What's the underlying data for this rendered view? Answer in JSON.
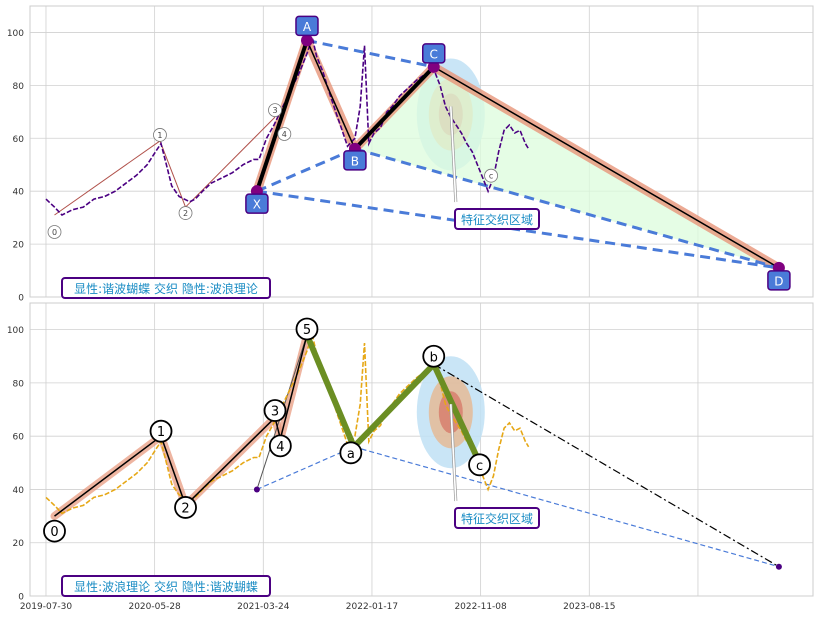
{
  "chart_data": [
    {
      "type": "line",
      "panel": "top",
      "ylim": [
        0,
        110
      ],
      "yticks": [
        0,
        20,
        40,
        60,
        80,
        100
      ],
      "grid": true,
      "legend_box": "显性:谐波蝴蝶 交织 隐性:波浪理论",
      "annotation_text": "特征交织区域",
      "series": [
        {
          "values": [
            [
              0.0,
              37
            ],
            [
              0.8,
              34
            ],
            [
              1.5,
              31
            ],
            [
              2.5,
              33
            ],
            [
              3.5,
              34
            ],
            [
              4.5,
              37
            ],
            [
              5.5,
              38
            ],
            [
              6.5,
              40
            ],
            [
              7.5,
              43
            ],
            [
              8.5,
              46
            ],
            [
              9.5,
              50
            ],
            [
              10.3,
              55
            ],
            [
              10.8,
              58
            ],
            [
              11.3,
              50
            ],
            [
              11.8,
              42
            ],
            [
              12.5,
              38
            ],
            [
              13.5,
              36
            ],
            [
              14.0,
              37
            ],
            [
              14.7,
              40
            ],
            [
              15.5,
              43
            ],
            [
              16.5,
              45
            ],
            [
              17.5,
              47
            ],
            [
              18.5,
              50
            ],
            [
              19.5,
              52
            ],
            [
              20.0,
              52
            ],
            [
              20.7,
              60
            ],
            [
              21.4,
              65
            ],
            [
              22.0,
              70
            ],
            [
              22.6,
              75
            ],
            [
              23.2,
              80
            ],
            [
              23.8,
              85
            ],
            [
              24.5,
              92
            ],
            [
              25.0,
              98
            ],
            [
              25.4,
              91
            ],
            [
              26.0,
              85
            ],
            [
              26.7,
              76
            ],
            [
              27.2,
              70
            ],
            [
              27.8,
              63
            ],
            [
              28.3,
              57
            ],
            [
              29.0,
              60
            ],
            [
              29.5,
              72
            ],
            [
              29.9,
              95
            ],
            [
              30.3,
              58
            ],
            [
              30.8,
              62
            ],
            [
              31.4,
              64
            ],
            [
              32.0,
              70
            ],
            [
              32.5,
              72
            ],
            [
              33.2,
              76
            ],
            [
              34.0,
              79
            ],
            [
              34.8,
              82
            ],
            [
              35.5,
              84
            ],
            [
              36.4,
              86
            ],
            [
              37.0,
              80
            ],
            [
              37.5,
              72
            ],
            [
              38.0,
              68
            ],
            [
              38.5,
              65
            ],
            [
              39.0,
              62
            ],
            [
              39.5,
              58
            ],
            [
              40.0,
              55
            ],
            [
              40.5,
              50
            ],
            [
              41.0,
              45
            ],
            [
              41.5,
              40
            ],
            [
              42.0,
              45
            ],
            [
              42.5,
              55
            ],
            [
              43.0,
              63
            ],
            [
              43.5,
              65
            ],
            [
              44.0,
              62
            ],
            [
              44.5,
              63
            ],
            [
              45.0,
              58
            ],
            [
              45.3,
              56
            ]
          ]
        }
      ],
      "pattern_points": [
        {
          "label": "X",
          "x": 19.8,
          "y": 40
        },
        {
          "label": "A",
          "x": 24.5,
          "y": 97
        },
        {
          "label": "B",
          "x": 29.0,
          "y": 56
        },
        {
          "label": "C",
          "x": 36.4,
          "y": 87
        },
        {
          "label": "D",
          "x": 68.8,
          "y": 11
        }
      ],
      "wave_labels": [
        {
          "label": "0",
          "x": 0.8,
          "y": 31
        },
        {
          "label": "1",
          "x": 10.7,
          "y": 59
        },
        {
          "label": "2",
          "x": 13.1,
          "y": 34
        },
        {
          "label": "3",
          "x": 21.5,
          "y": 68
        },
        {
          "label": "4",
          "x": 22.0,
          "y": 62
        },
        {
          "label": "c",
          "x": 41.5,
          "y": 47
        }
      ]
    },
    {
      "type": "line",
      "panel": "bottom",
      "ylim": [
        0,
        110
      ],
      "yticks": [
        0,
        20,
        40,
        60,
        80,
        100
      ],
      "xticks": [
        "2019-07-30",
        "2020-05-28",
        "2021-03-24",
        "2022-01-17",
        "2022-11-08",
        "2023-08-15"
      ],
      "grid": true,
      "legend_box": "显性:波浪理论 交织 隐性:谐波蝴蝶",
      "annotation_text": "特征交织区域",
      "series": [
        {
          "values": [
            [
              0.0,
              37
            ],
            [
              0.8,
              34
            ],
            [
              1.5,
              31
            ],
            [
              2.5,
              33
            ],
            [
              3.5,
              34
            ],
            [
              4.5,
              37
            ],
            [
              5.5,
              38
            ],
            [
              6.5,
              40
            ],
            [
              7.5,
              43
            ],
            [
              8.5,
              46
            ],
            [
              9.5,
              50
            ],
            [
              10.3,
              55
            ],
            [
              10.8,
              58
            ],
            [
              11.3,
              50
            ],
            [
              11.8,
              42
            ],
            [
              12.5,
              38
            ],
            [
              13.5,
              36
            ],
            [
              14.0,
              37
            ],
            [
              14.7,
              40
            ],
            [
              15.5,
              43
            ],
            [
              16.5,
              45
            ],
            [
              17.5,
              47
            ],
            [
              18.5,
              50
            ],
            [
              19.5,
              52
            ],
            [
              20.0,
              52
            ],
            [
              20.7,
              60
            ],
            [
              21.4,
              65
            ],
            [
              22.0,
              70
            ],
            [
              22.6,
              75
            ],
            [
              23.2,
              80
            ],
            [
              23.8,
              85
            ],
            [
              24.5,
              92
            ],
            [
              25.0,
              98
            ],
            [
              25.4,
              91
            ],
            [
              26.0,
              85
            ],
            [
              26.7,
              76
            ],
            [
              27.2,
              70
            ],
            [
              27.8,
              63
            ],
            [
              28.3,
              57
            ],
            [
              29.0,
              60
            ],
            [
              29.5,
              72
            ],
            [
              29.9,
              95
            ],
            [
              30.3,
              58
            ],
            [
              30.8,
              62
            ],
            [
              31.4,
              64
            ],
            [
              32.0,
              70
            ],
            [
              32.5,
              72
            ],
            [
              33.2,
              76
            ],
            [
              34.0,
              79
            ],
            [
              34.8,
              82
            ],
            [
              35.5,
              84
            ],
            [
              36.4,
              86
            ],
            [
              37.0,
              80
            ],
            [
              37.5,
              72
            ],
            [
              38.0,
              68
            ],
            [
              38.5,
              65
            ],
            [
              39.0,
              62
            ],
            [
              39.5,
              58
            ],
            [
              40.0,
              55
            ],
            [
              40.5,
              50
            ],
            [
              41.0,
              45
            ],
            [
              41.5,
              40
            ],
            [
              42.0,
              45
            ],
            [
              42.5,
              55
            ],
            [
              43.0,
              63
            ],
            [
              43.5,
              65
            ],
            [
              44.0,
              62
            ],
            [
              44.5,
              63
            ],
            [
              45.0,
              58
            ],
            [
              45.3,
              56
            ]
          ]
        }
      ],
      "wave_points": [
        {
          "label": "0",
          "x": 0.8,
          "y": 30
        },
        {
          "label": "1",
          "x": 10.8,
          "y": 60
        },
        {
          "label": "2",
          "x": 13.1,
          "y": 34
        },
        {
          "label": "3",
          "x": 21.5,
          "y": 67
        },
        {
          "label": "4",
          "x": 22.0,
          "y": 59
        },
        {
          "label": "5",
          "x": 24.5,
          "y": 98
        },
        {
          "label": "a",
          "x": 28.9,
          "y": 56
        },
        {
          "label": "b",
          "x": 36.4,
          "y": 87
        },
        {
          "label": "c",
          "x": 40.7,
          "y": 50
        }
      ],
      "hidden_points": [
        {
          "x": 19.8,
          "y": 40
        },
        {
          "x": 68.8,
          "y": 11
        }
      ]
    }
  ],
  "colors": {
    "price_top": "#4b0082",
    "price_bottom": "#e6a817",
    "harmonic_blue": "#4a7bd8",
    "box_border": "#4b0082",
    "box_text": "#1a8cc4",
    "wave_green": "#6b8e23",
    "salmon": "#e8967a"
  }
}
